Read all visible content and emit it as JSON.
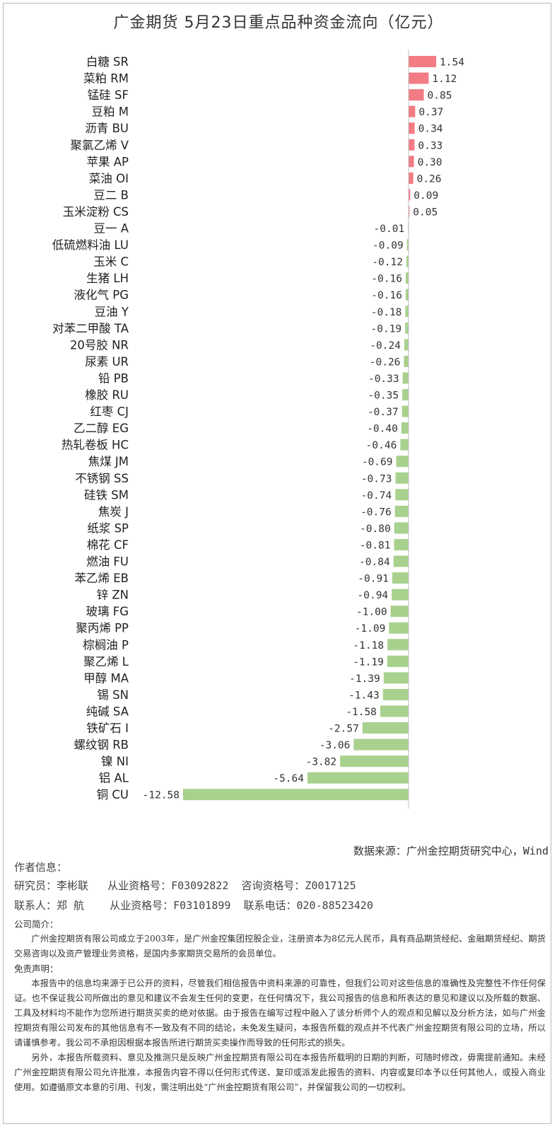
{
  "title": "广金期货 5月23日重点品种资金流向（亿元）",
  "source": "数据来源：广州金控期货研究中心，Wind",
  "author": {
    "header": "作者信息：",
    "line1": "研究员：李彬联   从业资格号：F03092822  咨询资格号：Z0017125",
    "line2": "联系人：郑 航    从业资格号：F03101899  联系电话：020-88523420"
  },
  "company": {
    "header": "公司简介：",
    "text": "广州金控期货有限公司成立于2003年，是广州金控集团控股企业，注册资本为8亿元人民币，具有商品期货经纪、金融期货经纪、期货交易咨询以及资产管理业务资格，是国内多家期货交易所的会员单位。"
  },
  "disclaimer": {
    "header": "免责声明：",
    "p1": "本报告中的信息均来源于已公开的资料，尽管我们相信报告中资料来源的可靠性，但我们公司对这些信息的准确性及完整性不作任何保证。也不保证我公司所做出的意见和建议不会发生任何的变更，在任何情况下，我公司报告的信息和所表达的意见和建议以及所载的数据、工具及材料均不能作为您所进行期货买卖的绝对依据。由于报告在编写过程中融入了该分析师个人的观点和见解以及分析方法，如与广州金控期货有限公司发布的其他信息有不一致及有不同的结论，未免发生疑问，本报告所载的观点并不代表广州金控期货有限公司的立场，所以请谨慎参考。我公司不承担因根据本报告所进行期货买卖操作而导致的任何形式的损失。",
    "p2": "另外，本报告所载资料、意见及推测只是反映广州金控期货有限公司在本报告所载明的日期的判断，可随时修改，毋需提前通知。未经广州金控期货有限公司允许批准，本报告内容不得以任何形式传送、复印或派发此报告的资料、内容或复印本予以任何其他人，或投入商业使用。如遵循原文本意的引用、刊发，需注明出处“广州金控期货有限公司”，并保留我公司的一切权利。"
  },
  "colors": {
    "positive": "#f27b84",
    "negative": "#a9d18e",
    "axis": "#bfbfbf"
  },
  "chart_data": {
    "type": "bar",
    "orientation": "horizontal",
    "categories": [
      "白糖 SR",
      "菜粕 RM",
      "锰硅 SF",
      "豆粕 M",
      "沥青 BU",
      "聚氯乙烯 V",
      "苹果 AP",
      "菜油 OI",
      "豆二 B",
      "玉米淀粉 CS",
      "豆一 A",
      "低硫燃料油 LU",
      "玉米 C",
      "生猪 LH",
      "液化气 PG",
      "豆油 Y",
      "对苯二甲酸 TA",
      "20号胶 NR",
      "尿素 UR",
      "铅 PB",
      "橡胶 RU",
      "红枣 CJ",
      "乙二醇 EG",
      "热轧卷板 HC",
      "焦煤 JM",
      "不锈钢 SS",
      "硅铁 SM",
      "焦炭 J",
      "纸浆 SP",
      "棉花 CF",
      "燃油 FU",
      "苯乙烯 EB",
      "锌 ZN",
      "玻璃 FG",
      "聚丙烯 PP",
      "棕榈油 P",
      "聚乙烯 L",
      "甲醇 MA",
      "锡 SN",
      "纯碱 SA",
      "铁矿石 I",
      "螺纹钢 RB",
      "镍 NI",
      "铝 AL",
      "铜 CU"
    ],
    "values": [
      1.54,
      1.12,
      0.85,
      0.37,
      0.34,
      0.33,
      0.3,
      0.26,
      0.09,
      0.05,
      -0.01,
      -0.09,
      -0.12,
      -0.16,
      -0.16,
      -0.18,
      -0.19,
      -0.24,
      -0.26,
      -0.33,
      -0.35,
      -0.37,
      -0.4,
      -0.46,
      -0.69,
      -0.73,
      -0.74,
      -0.76,
      -0.8,
      -0.81,
      -0.84,
      -0.91,
      -0.94,
      -1.0,
      -1.09,
      -1.18,
      -1.19,
      -1.39,
      -1.43,
      -1.58,
      -2.57,
      -3.06,
      -3.82,
      -5.64,
      -12.58
    ],
    "title": "广金期货 5月23日重点品种资金流向（亿元）",
    "xlabel": "",
    "ylabel": "",
    "xlim": [
      -12.58,
      1.54
    ],
    "grid": false,
    "data_labels": true
  }
}
